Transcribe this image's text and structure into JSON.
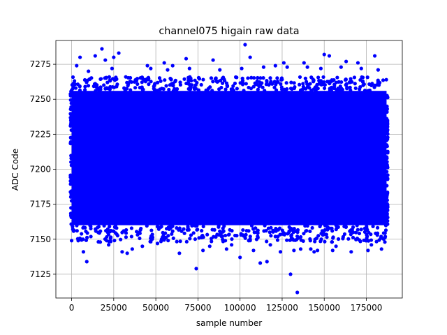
{
  "chart_data": {
    "type": "scatter",
    "title": "channel075 higain raw data",
    "xlabel": "sample number",
    "ylabel": "ADC Code",
    "xlim": [
      -9350,
      196350
    ],
    "ylim": [
      7108,
      7292
    ],
    "xticks": [
      0,
      25000,
      50000,
      75000,
      100000,
      125000,
      150000,
      175000
    ],
    "yticks": [
      7125,
      7150,
      7175,
      7200,
      7225,
      7250,
      7275
    ],
    "xtick_labels": [
      "0",
      "25000",
      "50000",
      "75000",
      "100000",
      "125000",
      "150000",
      "175000"
    ],
    "ytick_labels": [
      "7125",
      "7150",
      "7175",
      "7200",
      "7225",
      "7250",
      "7275"
    ],
    "grid": true,
    "marker_color": "#0000ff",
    "series": [
      {
        "dense_band": {
          "x_range": [
            0,
            187000
          ],
          "y_range": [
            7160,
            7256
          ]
        },
        "x": [
          0,
          3000,
          5000,
          9000,
          14000,
          18000,
          20000,
          25000,
          28000,
          33000,
          45000,
          55000,
          60000,
          68000,
          74000,
          84000,
          95000,
          100000,
          103000,
          106000,
          112000,
          116000,
          121000,
          126000,
          130000,
          134000,
          138000,
          142000,
          146000,
          150000,
          153000,
          157000,
          163000,
          170000,
          178000,
          180000,
          184000,
          7000,
          10000,
          17000,
          22000,
          24000,
          30000,
          36000,
          42000,
          47000,
          51000,
          57000,
          64000,
          70000,
          78000,
          82000,
          88000,
          92000,
          101000,
          108000,
          114000,
          118000,
          124000,
          128000,
          132000,
          136000,
          140000,
          144000,
          148000,
          155000,
          160000,
          166000,
          172000,
          176000,
          182000,
          186000
        ],
        "y": [
          7149,
          7274,
          7280,
          7134,
          7281,
          7286,
          7278,
          7280,
          7283,
          7140,
          7274,
          7276,
          7274,
          7279,
          7129,
          7278,
          7146,
          7137,
          7289,
          7280,
          7133,
          7134,
          7274,
          7276,
          7125,
          7112,
          7276,
          7143,
          7142,
          7282,
          7281,
          7145,
          7277,
          7276,
          7146,
          7281,
          7143,
          7141,
          7270,
          7148,
          7146,
          7272,
          7141,
          7143,
          7145,
          7272,
          7147,
          7271,
          7140,
          7272,
          7142,
          7145,
          7271,
          7143,
          7272,
          7142,
          7273,
          7146,
          7141,
          7273,
          7142,
          7143,
          7273,
          7141,
          7272,
          7142,
          7273,
          7141,
          7272,
          7142,
          7271,
          7148
        ]
      }
    ]
  }
}
